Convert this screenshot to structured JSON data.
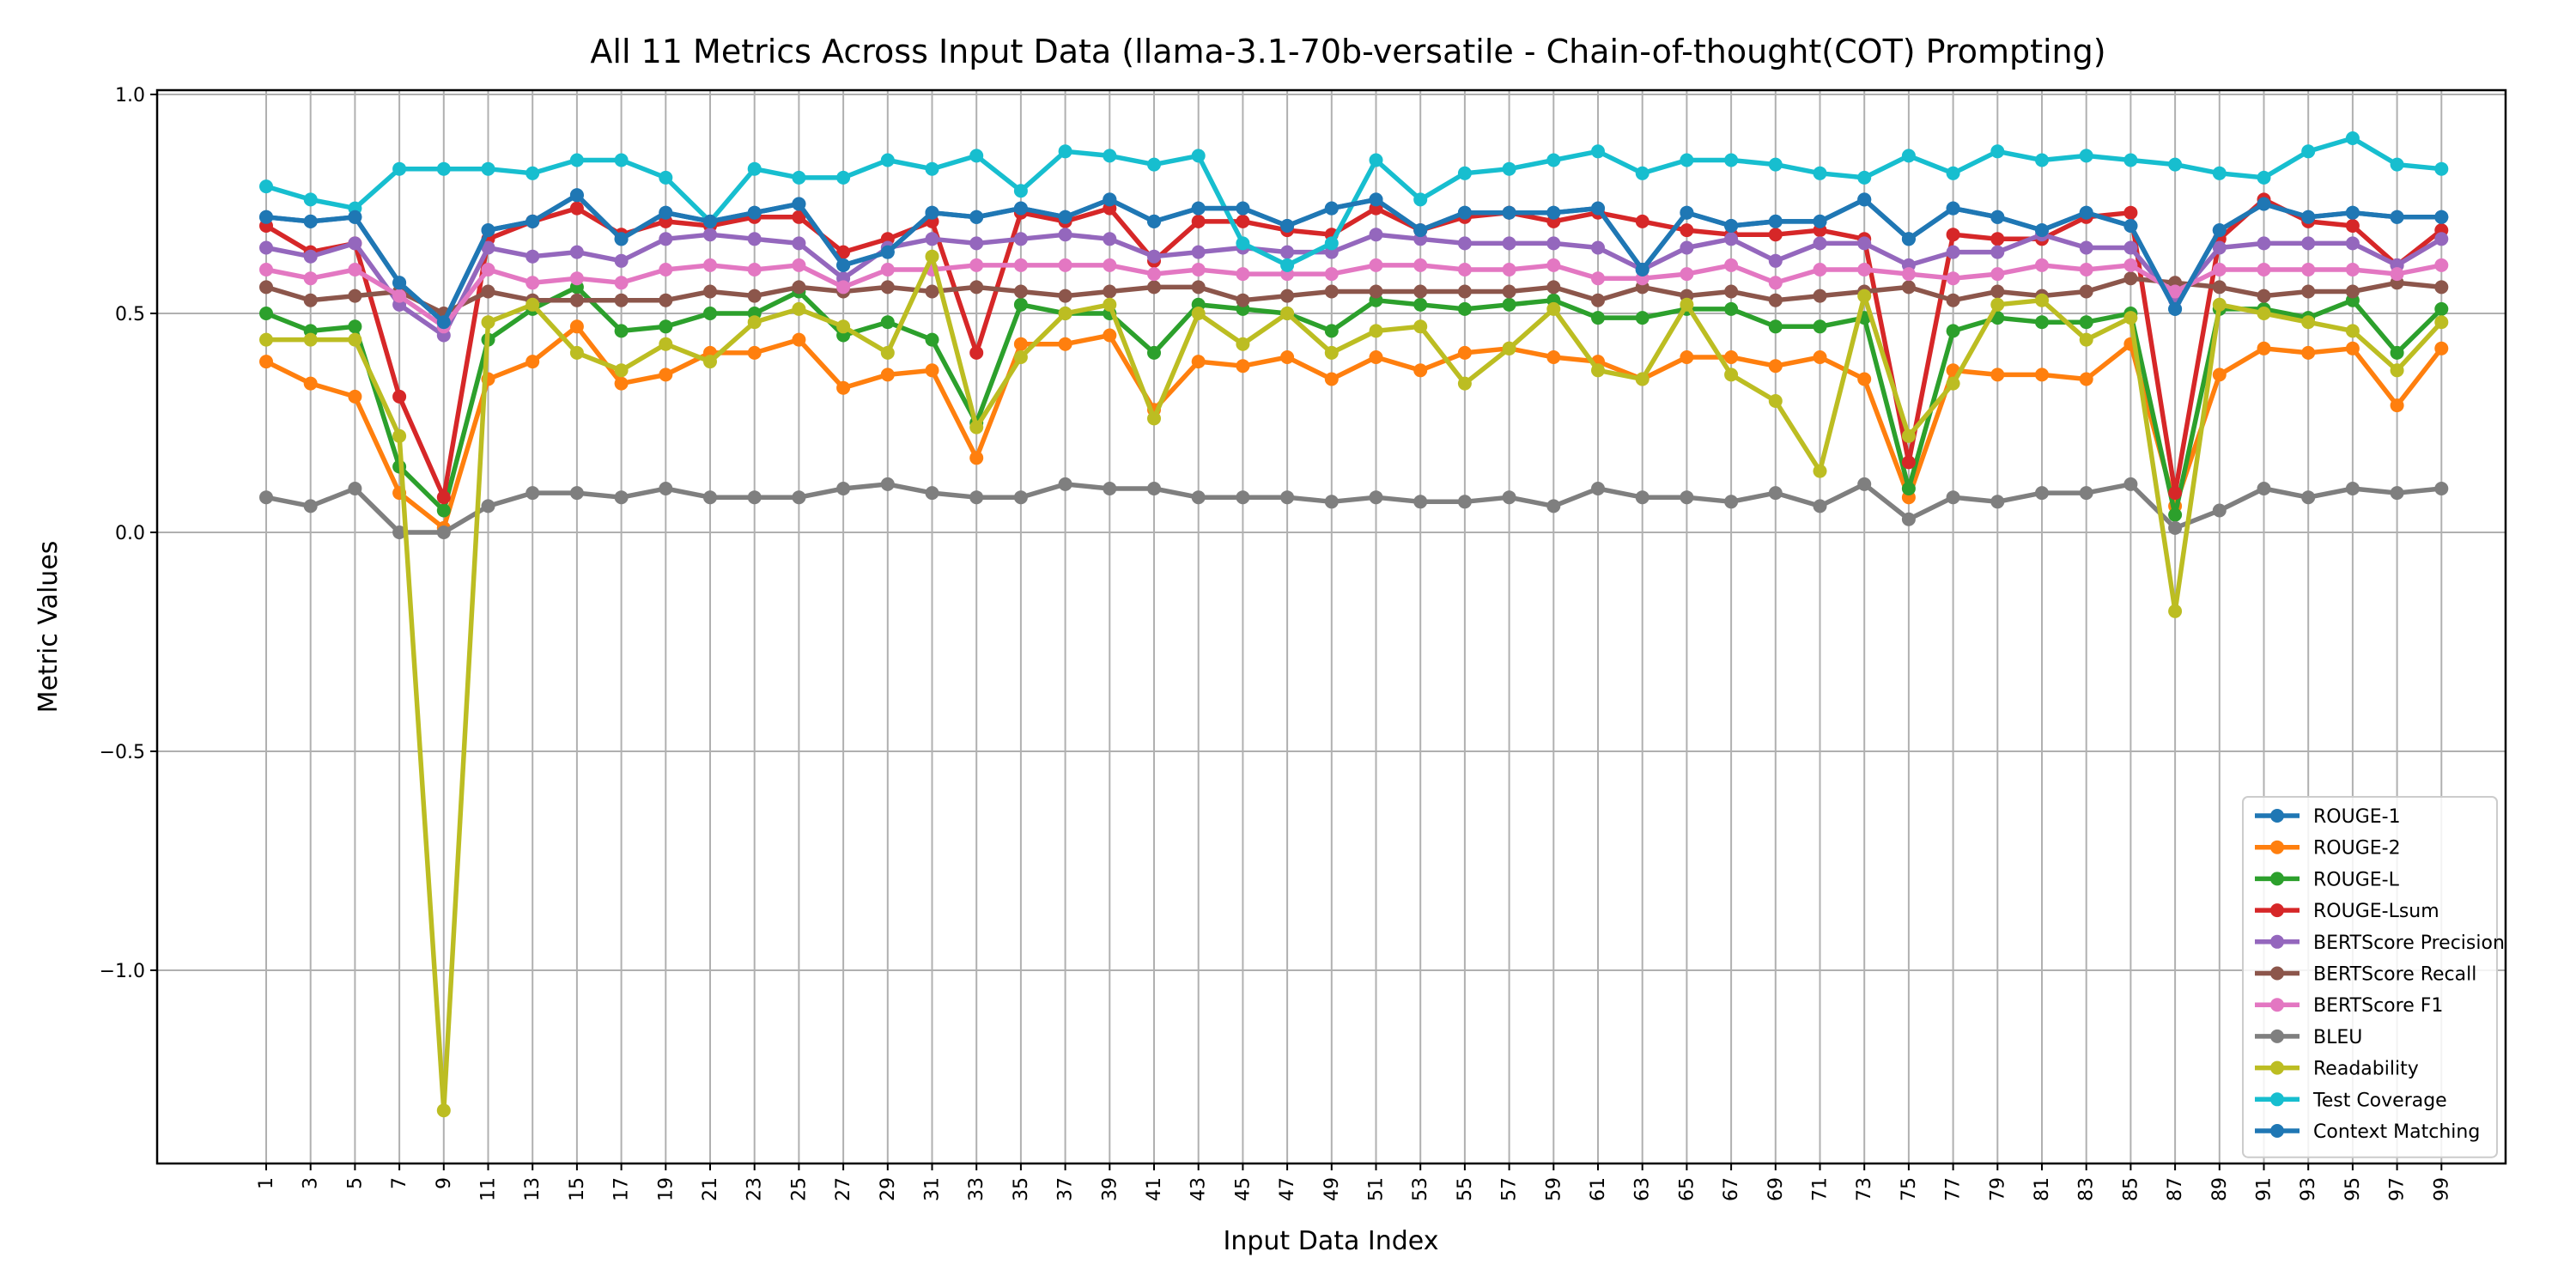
{
  "chart_data": {
    "type": "line",
    "title": "All 11 Metrics Across Input Data (llama-3.1-70b-versatile - Chain-of-thought(COT) Prompting)",
    "xlabel": "Input Data Index",
    "ylabel": "Metric Values",
    "x": [
      1,
      3,
      5,
      7,
      9,
      11,
      13,
      15,
      17,
      19,
      21,
      23,
      25,
      27,
      29,
      31,
      33,
      35,
      37,
      39,
      41,
      43,
      45,
      47,
      49,
      51,
      53,
      55,
      57,
      59,
      61,
      63,
      65,
      67,
      69,
      71,
      73,
      75,
      77,
      79,
      81,
      83,
      85,
      87,
      89,
      91,
      93,
      95,
      97,
      99
    ],
    "ylim": [
      -1.45,
      1.02
    ],
    "yticks": [
      1.0,
      0.5,
      0.0,
      -0.5,
      -1.0
    ],
    "ytick_labels": [
      "1.0",
      "0.5",
      "0.0",
      "−0.5",
      "−1.0"
    ],
    "grid": true,
    "legend_position": "lower-right",
    "series": [
      {
        "name": "ROUGE-1",
        "color": "#1f77b4",
        "values": [
          0.72,
          0.71,
          0.72,
          0.57,
          0.48,
          0.69,
          0.71,
          0.77,
          0.67,
          0.73,
          0.71,
          0.73,
          0.75,
          0.61,
          0.64,
          0.73,
          0.72,
          0.74,
          0.72,
          0.76,
          0.71,
          0.74,
          0.74,
          0.7,
          0.74,
          0.76,
          0.69,
          0.73,
          0.73,
          0.73,
          0.74,
          0.6,
          0.73,
          0.7,
          0.71,
          0.71,
          0.76,
          0.67,
          0.74,
          0.72,
          0.69,
          0.73,
          0.7,
          0.51,
          0.69,
          0.75,
          0.72,
          0.73,
          0.72,
          0.72
        ]
      },
      {
        "name": "ROUGE-2",
        "color": "#ff7f0e",
        "values": [
          0.39,
          0.34,
          0.31,
          0.09,
          0.01,
          0.35,
          0.39,
          0.47,
          0.34,
          0.36,
          0.41,
          0.41,
          0.44,
          0.33,
          0.36,
          0.37,
          0.17,
          0.43,
          0.43,
          0.45,
          0.28,
          0.39,
          0.38,
          0.4,
          0.35,
          0.4,
          0.37,
          0.41,
          0.42,
          0.4,
          0.39,
          0.35,
          0.4,
          0.4,
          0.38,
          0.4,
          0.35,
          0.08,
          0.37,
          0.36,
          0.36,
          0.35,
          0.43,
          0.06,
          0.36,
          0.42,
          0.41,
          0.42,
          0.29,
          0.42
        ]
      },
      {
        "name": "ROUGE-L",
        "color": "#2ca02c",
        "values": [
          0.5,
          0.46,
          0.47,
          0.15,
          0.05,
          0.44,
          0.51,
          0.56,
          0.46,
          0.47,
          0.5,
          0.5,
          0.55,
          0.45,
          0.48,
          0.44,
          0.25,
          0.52,
          0.5,
          0.5,
          0.41,
          0.52,
          0.51,
          0.5,
          0.46,
          0.53,
          0.52,
          0.51,
          0.52,
          0.53,
          0.49,
          0.49,
          0.51,
          0.51,
          0.47,
          0.47,
          0.49,
          0.1,
          0.46,
          0.49,
          0.48,
          0.48,
          0.5,
          0.04,
          0.51,
          0.51,
          0.49,
          0.53,
          0.41,
          0.51
        ]
      },
      {
        "name": "ROUGE-Lsum",
        "color": "#d62728",
        "values": [
          0.7,
          0.64,
          0.66,
          0.31,
          0.08,
          0.67,
          0.71,
          0.74,
          0.68,
          0.71,
          0.7,
          0.72,
          0.72,
          0.64,
          0.67,
          0.71,
          0.41,
          0.73,
          0.71,
          0.74,
          0.62,
          0.71,
          0.71,
          0.69,
          0.68,
          0.74,
          0.69,
          0.72,
          0.73,
          0.71,
          0.73,
          0.71,
          0.69,
          0.68,
          0.68,
          0.69,
          0.67,
          0.16,
          0.68,
          0.67,
          0.67,
          0.72,
          0.73,
          0.09,
          0.67,
          0.76,
          0.71,
          0.7,
          0.61,
          0.69
        ]
      },
      {
        "name": "BERTScore Precision",
        "color": "#9467bd",
        "values": [
          0.65,
          0.63,
          0.66,
          0.52,
          0.45,
          0.65,
          0.63,
          0.64,
          0.62,
          0.67,
          0.68,
          0.67,
          0.66,
          0.58,
          0.65,
          0.67,
          0.66,
          0.67,
          0.68,
          0.67,
          0.63,
          0.64,
          0.65,
          0.64,
          0.64,
          0.68,
          0.67,
          0.66,
          0.66,
          0.66,
          0.65,
          0.6,
          0.65,
          0.67,
          0.62,
          0.66,
          0.66,
          0.61,
          0.64,
          0.64,
          0.68,
          0.65,
          0.65,
          0.53,
          0.65,
          0.66,
          0.66,
          0.66,
          0.61,
          0.67
        ]
      },
      {
        "name": "BERTScore Recall",
        "color": "#8c564b",
        "values": [
          0.56,
          0.53,
          0.54,
          0.55,
          0.5,
          0.55,
          0.53,
          0.53,
          0.53,
          0.53,
          0.55,
          0.54,
          0.56,
          0.55,
          0.56,
          0.55,
          0.56,
          0.55,
          0.54,
          0.55,
          0.56,
          0.56,
          0.53,
          0.54,
          0.55,
          0.55,
          0.55,
          0.55,
          0.55,
          0.56,
          0.53,
          0.56,
          0.54,
          0.55,
          0.53,
          0.54,
          0.55,
          0.56,
          0.53,
          0.55,
          0.54,
          0.55,
          0.58,
          0.57,
          0.56,
          0.54,
          0.55,
          0.55,
          0.57,
          0.56
        ]
      },
      {
        "name": "BERTScore F1",
        "color": "#e377c2",
        "values": [
          0.6,
          0.58,
          0.6,
          0.54,
          0.47,
          0.6,
          0.57,
          0.58,
          0.57,
          0.6,
          0.61,
          0.6,
          0.61,
          0.56,
          0.6,
          0.6,
          0.61,
          0.61,
          0.61,
          0.61,
          0.59,
          0.6,
          0.59,
          0.59,
          0.59,
          0.61,
          0.61,
          0.6,
          0.6,
          0.61,
          0.58,
          0.58,
          0.59,
          0.61,
          0.57,
          0.6,
          0.6,
          0.59,
          0.58,
          0.59,
          0.61,
          0.6,
          0.61,
          0.55,
          0.6,
          0.6,
          0.6,
          0.6,
          0.59,
          0.61
        ]
      },
      {
        "name": "BLEU",
        "color": "#7f7f7f",
        "values": [
          0.08,
          0.06,
          0.1,
          0.0,
          0.0,
          0.06,
          0.09,
          0.09,
          0.08,
          0.1,
          0.08,
          0.08,
          0.08,
          0.1,
          0.11,
          0.09,
          0.08,
          0.08,
          0.11,
          0.1,
          0.1,
          0.08,
          0.08,
          0.08,
          0.07,
          0.08,
          0.07,
          0.07,
          0.08,
          0.06,
          0.1,
          0.08,
          0.08,
          0.07,
          0.09,
          0.06,
          0.11,
          0.03,
          0.08,
          0.07,
          0.09,
          0.09,
          0.11,
          0.01,
          0.05,
          0.1,
          0.08,
          0.1,
          0.09,
          0.1
        ]
      },
      {
        "name": "Readability",
        "color": "#bcbd22",
        "values": [
          0.44,
          0.44,
          0.44,
          0.22,
          -1.32,
          0.48,
          0.52,
          0.41,
          0.37,
          0.43,
          0.39,
          0.48,
          0.51,
          0.47,
          0.41,
          0.63,
          0.24,
          0.4,
          0.5,
          0.52,
          0.26,
          0.5,
          0.43,
          0.5,
          0.41,
          0.46,
          0.47,
          0.34,
          0.42,
          0.51,
          0.37,
          0.35,
          0.52,
          0.36,
          0.3,
          0.14,
          0.54,
          0.22,
          0.34,
          0.52,
          0.53,
          0.44,
          0.49,
          -0.18,
          0.52,
          0.5,
          0.48,
          0.46,
          0.37,
          0.48
        ]
      },
      {
        "name": "Test Coverage",
        "color": "#17becf",
        "values": [
          0.79,
          0.76,
          0.74,
          0.83,
          0.83,
          0.83,
          0.82,
          0.85,
          0.85,
          0.81,
          0.71,
          0.83,
          0.81,
          0.81,
          0.85,
          0.83,
          0.86,
          0.78,
          0.87,
          0.86,
          0.84,
          0.86,
          0.66,
          0.61,
          0.66,
          0.85,
          0.76,
          0.82,
          0.83,
          0.85,
          0.87,
          0.82,
          0.85,
          0.85,
          0.84,
          0.82,
          0.81,
          0.86,
          0.82,
          0.87,
          0.85,
          0.86,
          0.85,
          0.84,
          0.82,
          0.81,
          0.87,
          0.9,
          0.84,
          0.83
        ]
      },
      {
        "name": "Context Matching",
        "color": "#1f77b4",
        "values": [
          0.72,
          0.71,
          0.72,
          0.57,
          0.48,
          0.69,
          0.71,
          0.77,
          0.67,
          0.73,
          0.71,
          0.73,
          0.75,
          0.61,
          0.64,
          0.73,
          0.72,
          0.74,
          0.72,
          0.76,
          0.71,
          0.74,
          0.74,
          0.7,
          0.74,
          0.76,
          0.69,
          0.73,
          0.73,
          0.73,
          0.74,
          0.6,
          0.73,
          0.7,
          0.71,
          0.71,
          0.76,
          0.67,
          0.74,
          0.72,
          0.69,
          0.73,
          0.7,
          0.51,
          0.69,
          0.75,
          0.72,
          0.73,
          0.72,
          0.72
        ]
      }
    ]
  }
}
